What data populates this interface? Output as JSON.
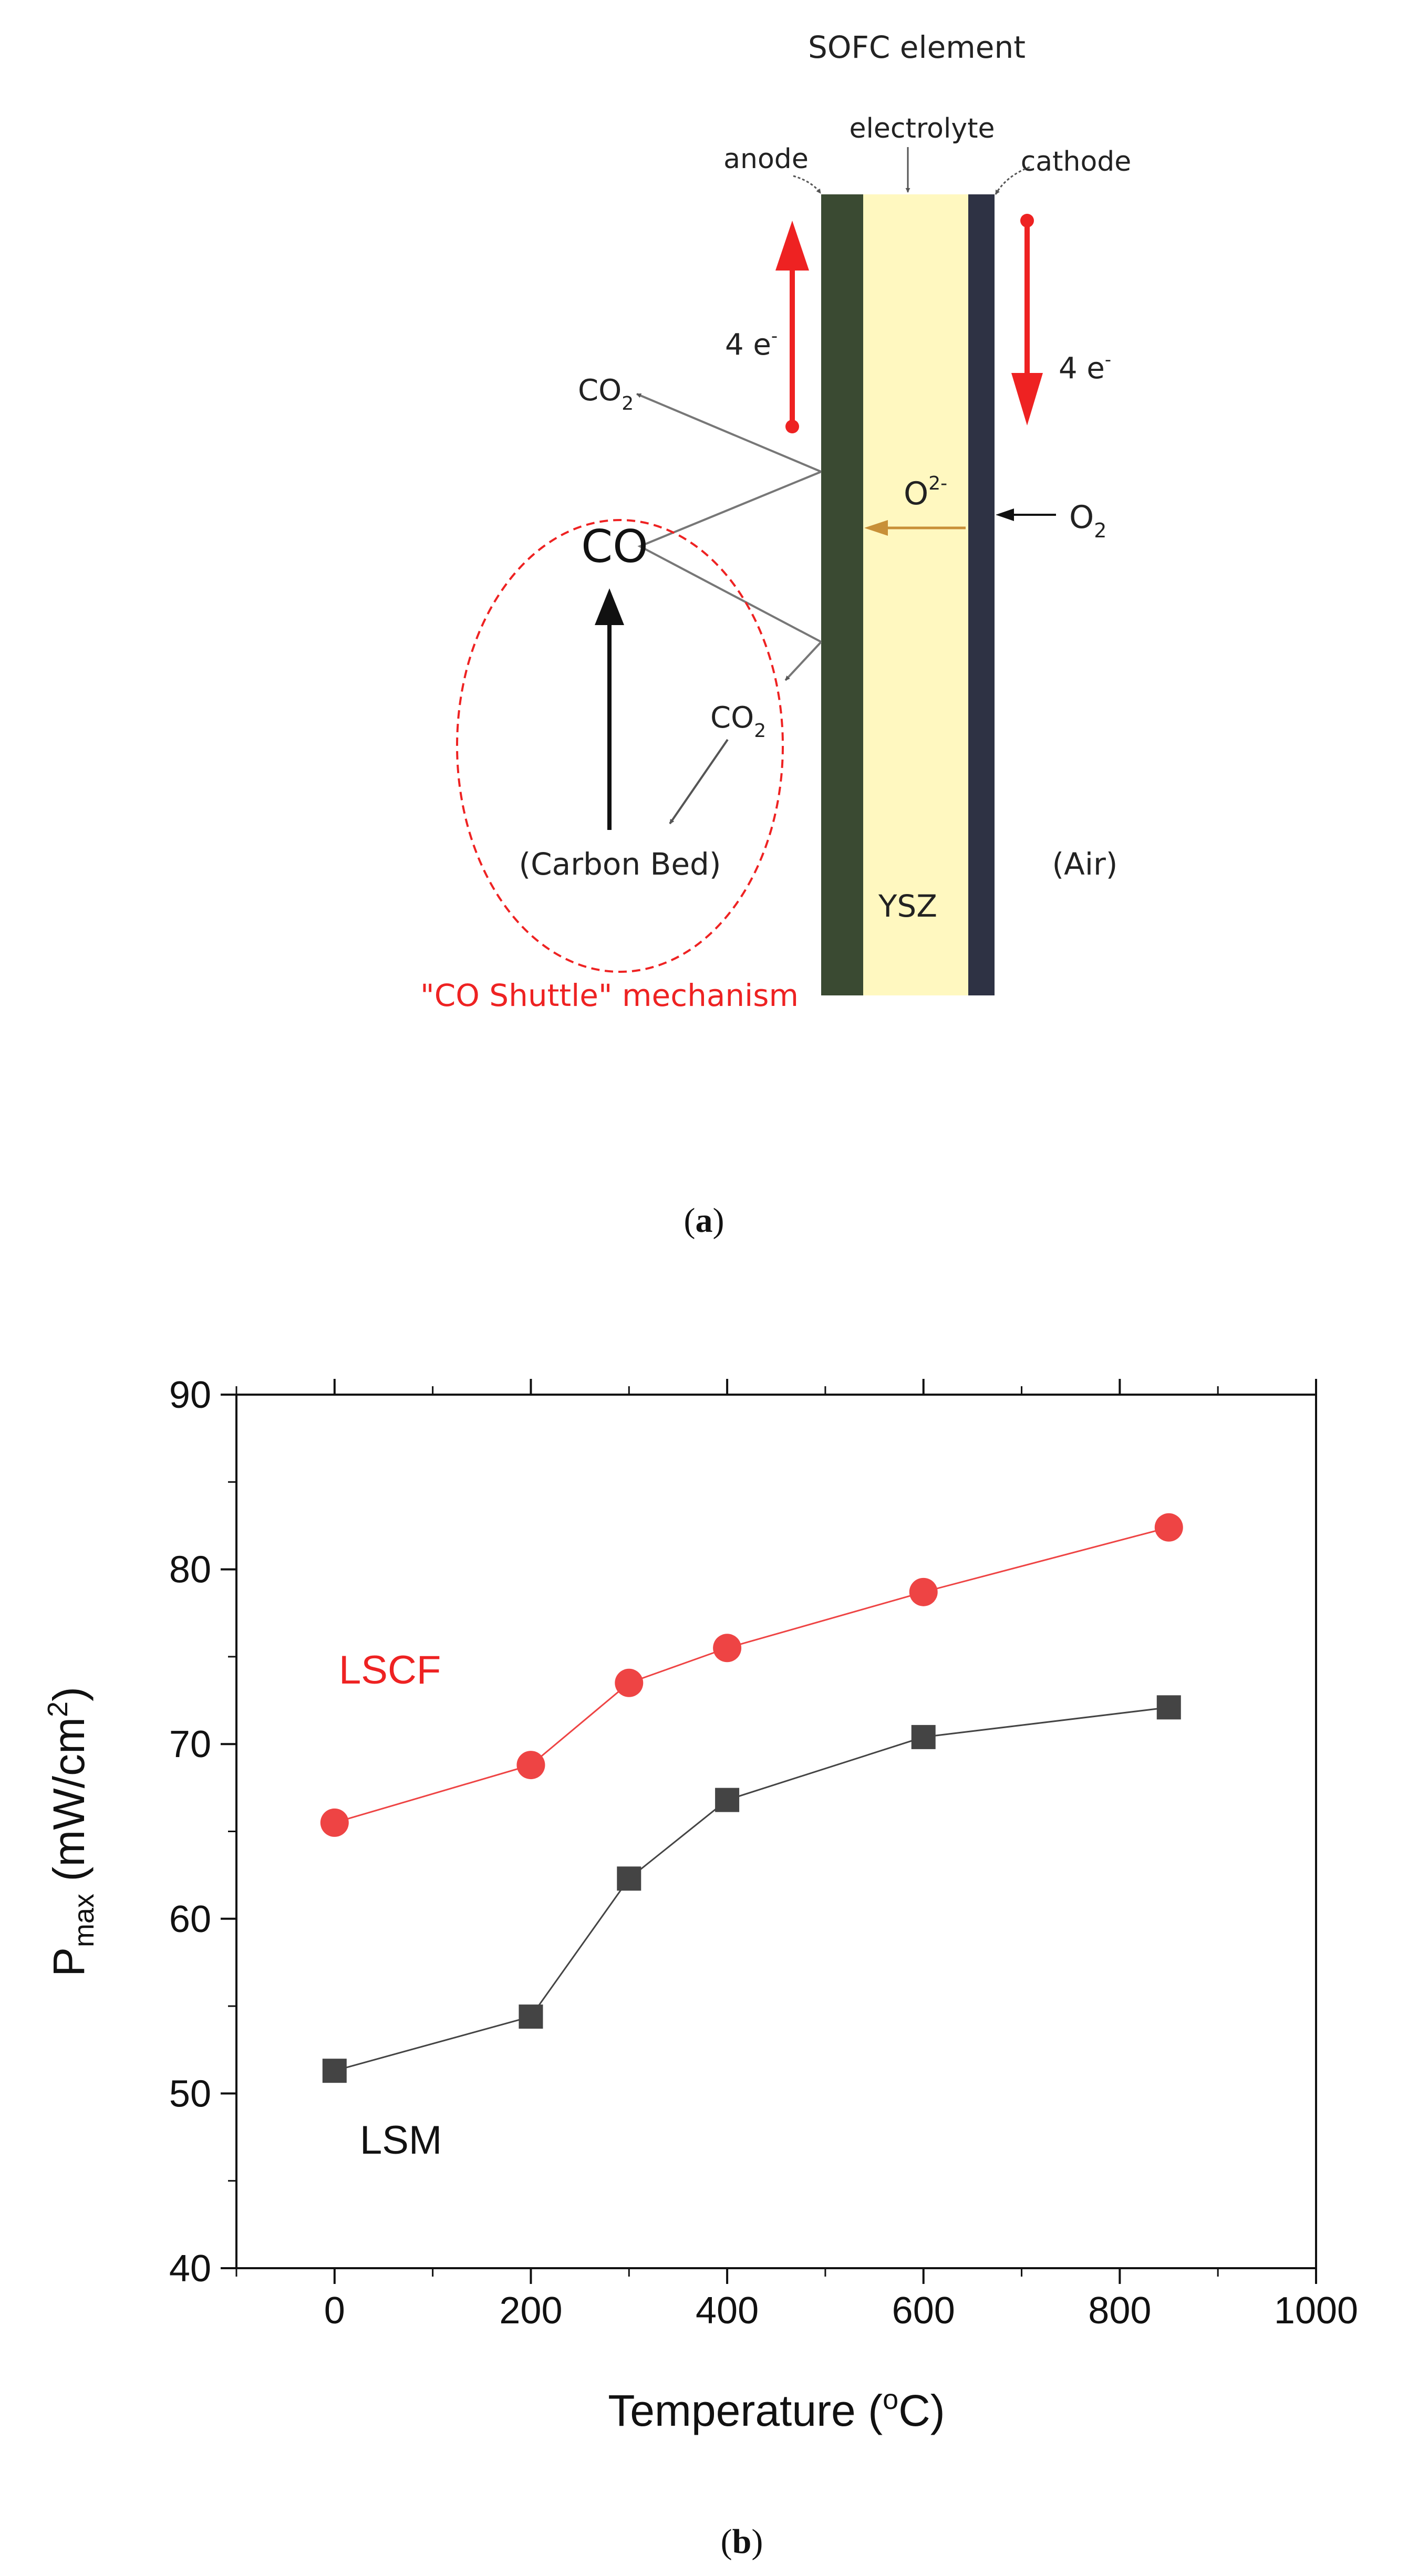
{
  "panel_a": {
    "title": "SOFC element",
    "labels": {
      "anode": "anode",
      "electrolyte": "electrolyte",
      "cathode": "cathode",
      "electrons_left": "4 e",
      "electrons_right": "4 e",
      "electron_sup": "-",
      "co2_top": "CO",
      "co2_bottom": "CO",
      "subscript_2": "2",
      "co": "CO",
      "oxide_ion": "O",
      "oxide_sup": "2-",
      "o2": "O",
      "carbon_bed": "(Carbon Bed)",
      "ysz": "YSZ",
      "air": "(Air)",
      "mechanism": "\"CO Shuttle\" mechanism"
    },
    "caption": "a",
    "colors": {
      "anode": "#3a4a32",
      "electrolyte": "#fff8c0",
      "cathode": "#2e3244",
      "accent_red": "#ee2222",
      "ion_arrow": "#c89038"
    }
  },
  "panel_b": {
    "caption": "b",
    "ylabel_main": "P",
    "ylabel_sub": "max",
    "ylabel_unit": " (mW/cm",
    "ylabel_sup": "2",
    "ylabel_close": ")",
    "xlabel_main": "Temperature (",
    "xlabel_sup": "o",
    "xlabel_close": "C)"
  },
  "chart_data": {
    "type": "line",
    "title": "",
    "xlabel": "Temperature (oC)",
    "ylabel": "Pmax (mW/cm2)",
    "xlim": [
      -100,
      1000
    ],
    "ylim": [
      40,
      90
    ],
    "xticks": [
      0,
      200,
      400,
      600,
      800,
      1000
    ],
    "yticks": [
      40,
      50,
      60,
      70,
      80,
      90
    ],
    "grid": false,
    "series": [
      {
        "name": "LSCF",
        "marker": "circle",
        "color": "#ee4444",
        "x": [
          0,
          200,
          300,
          400,
          600,
          850
        ],
        "y": [
          65.5,
          68.8,
          73.5,
          75.5,
          78.7,
          82.4
        ]
      },
      {
        "name": "LSM",
        "marker": "square",
        "color": "#444444",
        "x": [
          0,
          200,
          300,
          400,
          600,
          850
        ],
        "y": [
          51.3,
          54.4,
          62.3,
          66.8,
          70.4,
          72.1
        ]
      }
    ]
  }
}
